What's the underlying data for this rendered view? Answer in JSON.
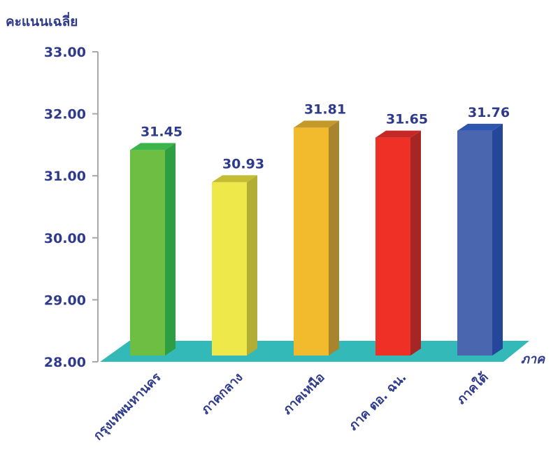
{
  "chart_data": {
    "type": "bar",
    "title": "",
    "ylabel": "คะแนนเฉลี่ย",
    "xlabel": "ภาค",
    "categories": [
      "กรุงเทพมหานคร",
      "ภาคกลาง",
      "ภาคเหนือ",
      "ภาค ตอ. ฉน.",
      "ภาคใต้"
    ],
    "values": [
      31.45,
      30.93,
      31.81,
      31.65,
      31.76
    ],
    "data_labels": [
      "31.45",
      "30.93",
      "31.81",
      "31.65",
      "31.76"
    ],
    "ylim": [
      28.0,
      33.0
    ],
    "yticks": [
      "28.00",
      "29.00",
      "30.00",
      "31.00",
      "32.00",
      "33.00"
    ],
    "bar_colors": [
      {
        "front": "#6fbe44",
        "side": "#2e9e42",
        "top": "#3bb54a"
      },
      {
        "front": "#efe84a",
        "side": "#b2ad35",
        "top": "#c4bd33"
      },
      {
        "front": "#f2bb2e",
        "side": "#a8842d",
        "top": "#c39a2a"
      },
      {
        "front": "#ef3026",
        "side": "#a52624",
        "top": "#c62828"
      },
      {
        "front": "#4a66ae",
        "side": "#25479a",
        "top": "#2e55b0"
      }
    ],
    "floor_color": "#33b9b8",
    "text_color": "#2e3a8c",
    "grid": false,
    "legend": "none"
  }
}
